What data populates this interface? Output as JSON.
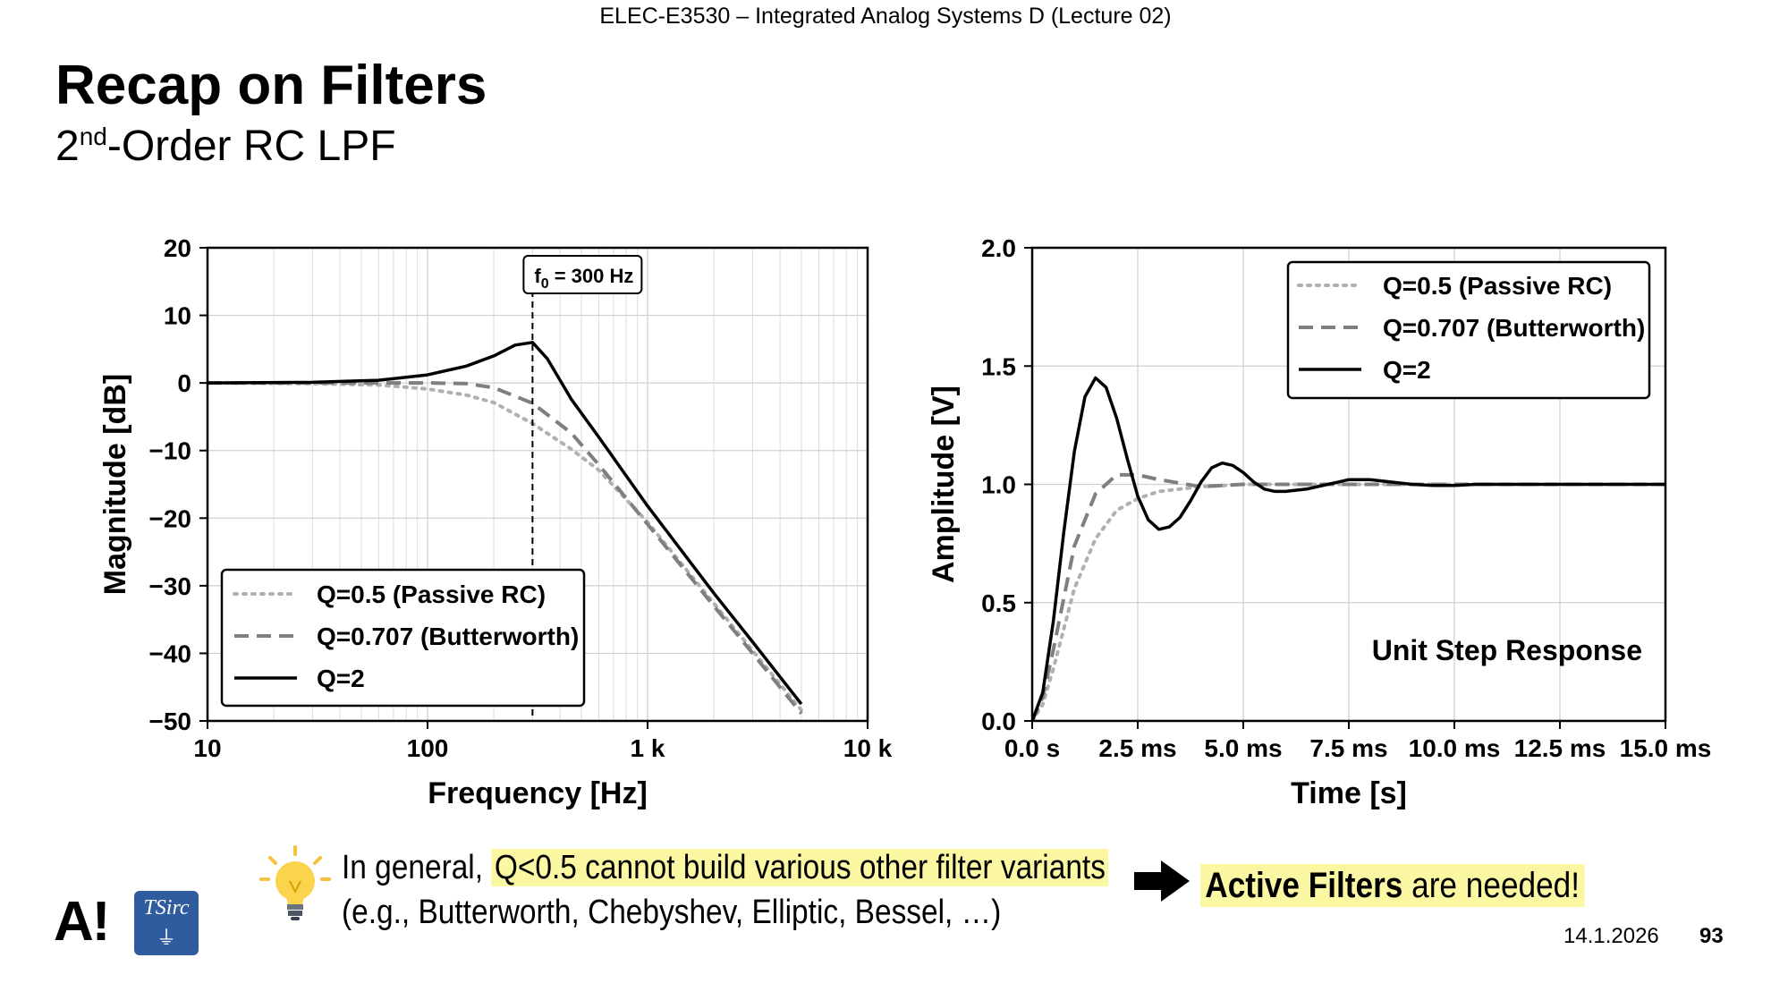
{
  "header": {
    "course": "ELEC-E3530 – Integrated Analog Systems D (Lecture 02)"
  },
  "slide": {
    "title": "Recap on Filters",
    "subtitle_base": "2",
    "subtitle_sup": "nd",
    "subtitle_rest": "-Order RC LPF"
  },
  "chart_data": [
    {
      "type": "line",
      "title": "",
      "xlabel": "Frequency [Hz]",
      "ylabel": "Magnitude [dB]",
      "xscale": "log",
      "xlim": [
        10,
        10000
      ],
      "ylim": [
        -50,
        20
      ],
      "xticks": [
        10,
        100,
        1000,
        10000
      ],
      "xtick_labels": [
        "10",
        "100",
        "1 k",
        "10 k"
      ],
      "yticks": [
        20,
        10,
        0,
        -10,
        -20,
        -30,
        -40,
        -50
      ],
      "ytick_labels": [
        "20",
        "10",
        "0",
        "−10",
        "−20",
        "−30",
        "−40",
        "−50"
      ],
      "grid": true,
      "legend": "bottom-left",
      "annotation": {
        "x": 300,
        "label_base": "f",
        "label_sub": "0",
        "label_rest": " = 300 Hz"
      },
      "series": [
        {
          "name": "Q=0.5 (Passive RC)",
          "q": 0.5,
          "style": "dotted",
          "color": "#b0b0b0",
          "x": [
            10,
            30,
            60,
            100,
            150,
            200,
            300,
            450,
            600,
            1000,
            2000,
            3000,
            5000
          ],
          "y": [
            0.0,
            -0.1,
            -0.3,
            -0.9,
            -1.8,
            -2.9,
            -6.0,
            -9.8,
            -12.9,
            -20.6,
            -32.6,
            -39.6,
            -48.4
          ]
        },
        {
          "name": "Q=0.707 (Butterworth)",
          "q": 0.707,
          "style": "dashed",
          "color": "#7f7f7f",
          "x": [
            10,
            30,
            60,
            100,
            150,
            200,
            300,
            450,
            600,
            1000,
            2000,
            3000,
            5000
          ],
          "y": [
            0.0,
            0.0,
            0.0,
            0.0,
            -0.1,
            -0.7,
            -3.0,
            -7.4,
            -12.1,
            -20.9,
            -33.0,
            -40.0,
            -48.9
          ]
        },
        {
          "name": "Q=2",
          "q": 2,
          "style": "solid",
          "color": "#000000",
          "x": [
            10,
            30,
            60,
            100,
            150,
            200,
            250,
            300,
            350,
            450,
            600,
            1000,
            2000,
            3000,
            5000
          ],
          "y": [
            0.0,
            0.1,
            0.4,
            1.2,
            2.5,
            4.0,
            5.6,
            6.0,
            3.6,
            -2.4,
            -8.0,
            -18.2,
            -31.1,
            -38.3,
            -47.5
          ]
        }
      ]
    },
    {
      "type": "line",
      "title": "",
      "annotation_text": "Unit Step Response",
      "xlabel": "Time [s]",
      "ylabel": "Amplitude [V]",
      "xlim": [
        0,
        15
      ],
      "x_unit": "ms",
      "ylim": [
        0,
        2
      ],
      "xticks": [
        0,
        2.5,
        5,
        7.5,
        10,
        12.5,
        15
      ],
      "xtick_labels": [
        "0.0 s",
        "2.5 ms",
        "5.0 ms",
        "7.5 ms",
        "10.0 ms",
        "12.5 ms",
        "15.0 ms"
      ],
      "yticks": [
        2,
        1.5,
        1,
        0.5,
        0
      ],
      "ytick_labels": [
        "2.0",
        "1.5",
        "1.0",
        "0.5",
        "0.0"
      ],
      "grid": true,
      "legend": "top-right",
      "series": [
        {
          "name": "Q=0.5 (Passive RC)",
          "style": "dotted",
          "color": "#b0b0b0",
          "x": [
            0,
            0.25,
            0.5,
            1.0,
            1.5,
            2.0,
            2.5,
            3.0,
            4.0,
            5.0,
            7.5,
            15
          ],
          "y": [
            0,
            0.07,
            0.22,
            0.56,
            0.77,
            0.89,
            0.94,
            0.97,
            0.99,
            1.0,
            1.0,
            1.0
          ]
        },
        {
          "name": "Q=0.707 (Butterworth)",
          "style": "dashed",
          "color": "#7f7f7f",
          "x": [
            0,
            0.25,
            0.5,
            1.0,
            1.5,
            2.0,
            2.5,
            3.0,
            4.0,
            5.0,
            6.0,
            7.5,
            15
          ],
          "y": [
            0,
            0.1,
            0.3,
            0.74,
            0.96,
            1.04,
            1.04,
            1.02,
            0.99,
            1.0,
            1.0,
            1.0,
            1.0
          ]
        },
        {
          "name": "Q=2",
          "style": "solid",
          "color": "#000000",
          "x": [
            0,
            0.25,
            0.5,
            0.75,
            1.0,
            1.25,
            1.5,
            1.75,
            2.0,
            2.25,
            2.5,
            2.75,
            3.0,
            3.25,
            3.5,
            3.75,
            4.0,
            4.25,
            4.5,
            4.75,
            5.0,
            5.25,
            5.5,
            5.75,
            6.0,
            6.5,
            7.0,
            7.25,
            7.5,
            8.0,
            8.5,
            9.0,
            9.5,
            10.0,
            10.5,
            11.0,
            12.0,
            13.0,
            15.0
          ],
          "y": [
            0,
            0.12,
            0.42,
            0.8,
            1.14,
            1.37,
            1.45,
            1.41,
            1.28,
            1.11,
            0.95,
            0.85,
            0.81,
            0.82,
            0.86,
            0.93,
            1.01,
            1.07,
            1.09,
            1.08,
            1.05,
            1.01,
            0.98,
            0.97,
            0.97,
            0.98,
            1.0,
            1.01,
            1.02,
            1.02,
            1.01,
            1.0,
            0.995,
            0.995,
            1.0,
            1.0,
            1.0,
            1.0,
            1.0
          ]
        }
      ]
    }
  ],
  "note": {
    "line1_plain": "In general,",
    "line1_highlight": "Q<0.5 cannot build various other filter variants",
    "line2": "(e.g., Butterworth, Chebyshev, Elliptic, Bessel, …)"
  },
  "conclusion": {
    "bold": "Active Filters",
    "rest": " are needed!"
  },
  "footer": {
    "logo_a": "A!",
    "logo_tsirc": "TSirc",
    "date": "14.1.2026",
    "page": "93"
  },
  "colors": {
    "highlight": "#fbf7a3",
    "tsirc_blue": "#2e5c9e"
  }
}
